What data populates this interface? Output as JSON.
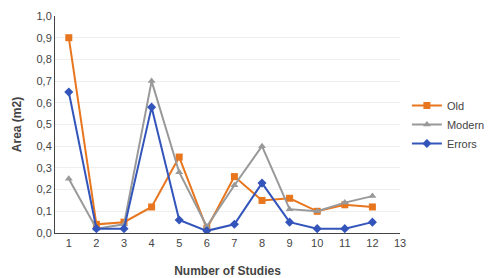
{
  "chart_data": {
    "type": "line",
    "x": [
      1,
      2,
      3,
      4,
      5,
      6,
      7,
      8,
      9,
      10,
      11,
      12
    ],
    "series": [
      {
        "name": "Old",
        "color": "#E8761E",
        "marker": "square",
        "values": [
          0.9,
          0.04,
          0.05,
          0.12,
          0.35,
          0.02,
          0.26,
          0.15,
          0.16,
          0.1,
          0.13,
          0.12
        ]
      },
      {
        "name": "Modern",
        "color": "#999999",
        "marker": "triangle-up",
        "values": [
          0.25,
          0.02,
          0.04,
          0.7,
          0.28,
          0.03,
          0.22,
          0.4,
          0.11,
          0.1,
          0.14,
          0.17
        ]
      },
      {
        "name": "Errors",
        "color": "#3355BB",
        "marker": "diamond",
        "values": [
          0.65,
          0.02,
          0.02,
          0.58,
          0.06,
          0.01,
          0.04,
          0.23,
          0.05,
          0.02,
          0.02,
          0.05
        ]
      }
    ],
    "xlabel": "Number of Studies",
    "ylabel": "Area (m2)",
    "xlim": [
      0.5,
      13
    ],
    "ylim": [
      0,
      1.0
    ],
    "xticks": [
      1,
      2,
      3,
      4,
      5,
      6,
      7,
      8,
      9,
      10,
      11,
      12,
      13
    ],
    "yticks": [
      {
        "value": 0,
        "label": "0,0"
      },
      {
        "value": 0.1,
        "label": "0,1"
      },
      {
        "value": 0.2,
        "label": "0,2"
      },
      {
        "value": 0.3,
        "label": "0,3"
      },
      {
        "value": 0.4,
        "label": "0,4"
      },
      {
        "value": 0.5,
        "label": "0,5"
      },
      {
        "value": 0.6,
        "label": "0,6"
      },
      {
        "value": 0.7,
        "label": "0,7"
      },
      {
        "value": 0.8,
        "label": "0,8"
      },
      {
        "value": 0.9,
        "label": "0,9"
      },
      {
        "value": 1,
        "label": "1,0"
      }
    ],
    "grid": true,
    "legend": "right"
  }
}
